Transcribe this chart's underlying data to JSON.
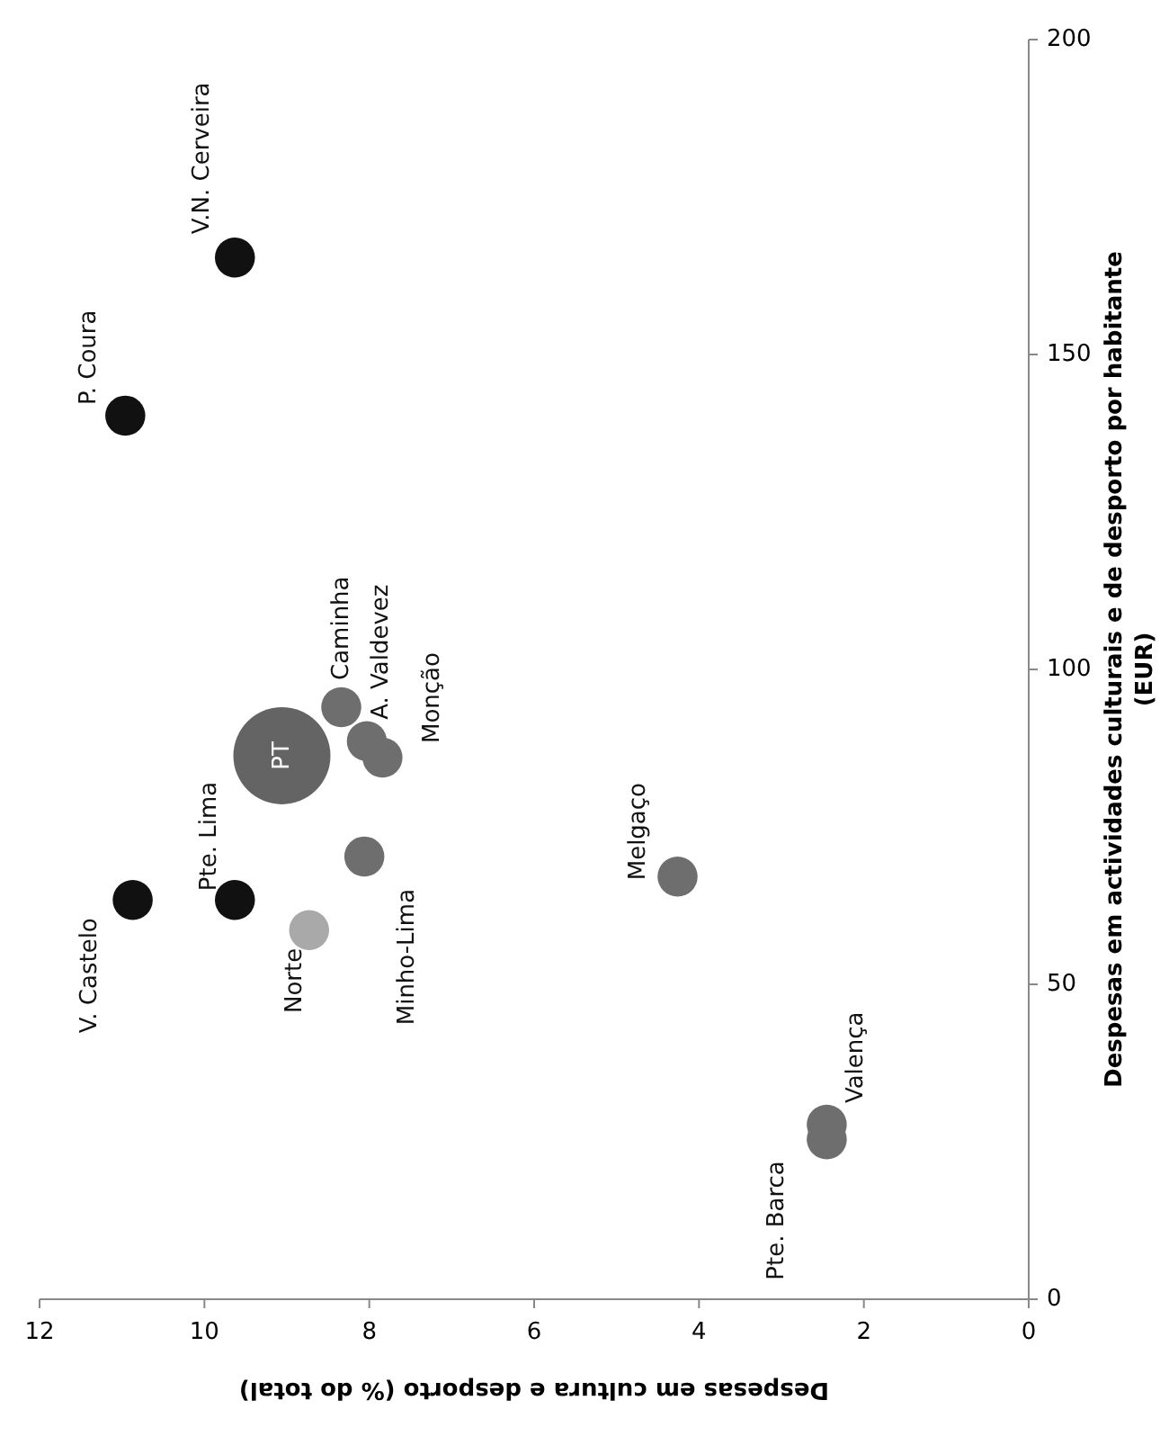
{
  "chart_data": {
    "type": "bubble",
    "xlabel": "Despesas em cultura e desporto (% do total)",
    "ylabel": "Despesas em actividades culturais e de desporto por habitante\n(EUR)",
    "xlim": [
      12,
      0
    ],
    "xticks": [
      12,
      10,
      8,
      6,
      4,
      2,
      0
    ],
    "ylim": [
      0,
      200
    ],
    "yticks": [
      0,
      50,
      100,
      150,
      200
    ],
    "grid": false,
    "marker": "circle",
    "series": [
      {
        "x": [
          9.63,
          10.96,
          10.87,
          9.63,
          8.34,
          8.03,
          7.84,
          8.06,
          8.73,
          4.26,
          2.45,
          2.45,
          9.06
        ],
        "values": [
          165.4,
          140.3,
          63.4,
          63.4,
          94,
          88.6,
          86,
          70.3,
          58.6,
          67.1,
          27.7,
          25.4,
          86.3
        ],
        "sizes": [
          0.17,
          0.17,
          0.17,
          0.17,
          0.17,
          0.17,
          0.17,
          0.17,
          0.17,
          0.17,
          0.17,
          0.17,
          1
        ],
        "colors": [
          "#111111",
          "#111111",
          "#111111",
          "#111111",
          "#6e6e6e",
          "#6e6e6e",
          "#6e6e6e",
          "#6e6e6e",
          "#a9a9a9",
          "#6e6e6e",
          "#6e6e6e",
          "#6e6e6e",
          "#646464"
        ]
      }
    ],
    "annotations": [
      {
        "text": "V.N. Cerveira",
        "x": 9.63,
        "y": 165.4
      },
      {
        "text": "P. Coura",
        "x": 10.96,
        "y": 140.3
      },
      {
        "text": "V. Castelo",
        "x": 10.87,
        "y": 63.4
      },
      {
        "text": "Pte. Lima",
        "x": 9.63,
        "y": 63.4
      },
      {
        "text": "Caminha",
        "x": 8.34,
        "y": 94
      },
      {
        "text": "A. Valdevez",
        "x": 8.03,
        "y": 88.6
      },
      {
        "text": "Monção",
        "x": 7.84,
        "y": 86
      },
      {
        "text": "Minho-Lima",
        "x": 8.06,
        "y": 70.3
      },
      {
        "text": "Norte",
        "x": 8.73,
        "y": 58.6
      },
      {
        "text": "Melgaço",
        "x": 4.26,
        "y": 67.1
      },
      {
        "text": "Valença",
        "x": 2.45,
        "y": 27.7
      },
      {
        "text": "Pte. Barca",
        "x": 2.45,
        "y": 25.4
      },
      {
        "text": "PT",
        "x": 9.06,
        "y": 86.3
      }
    ]
  }
}
